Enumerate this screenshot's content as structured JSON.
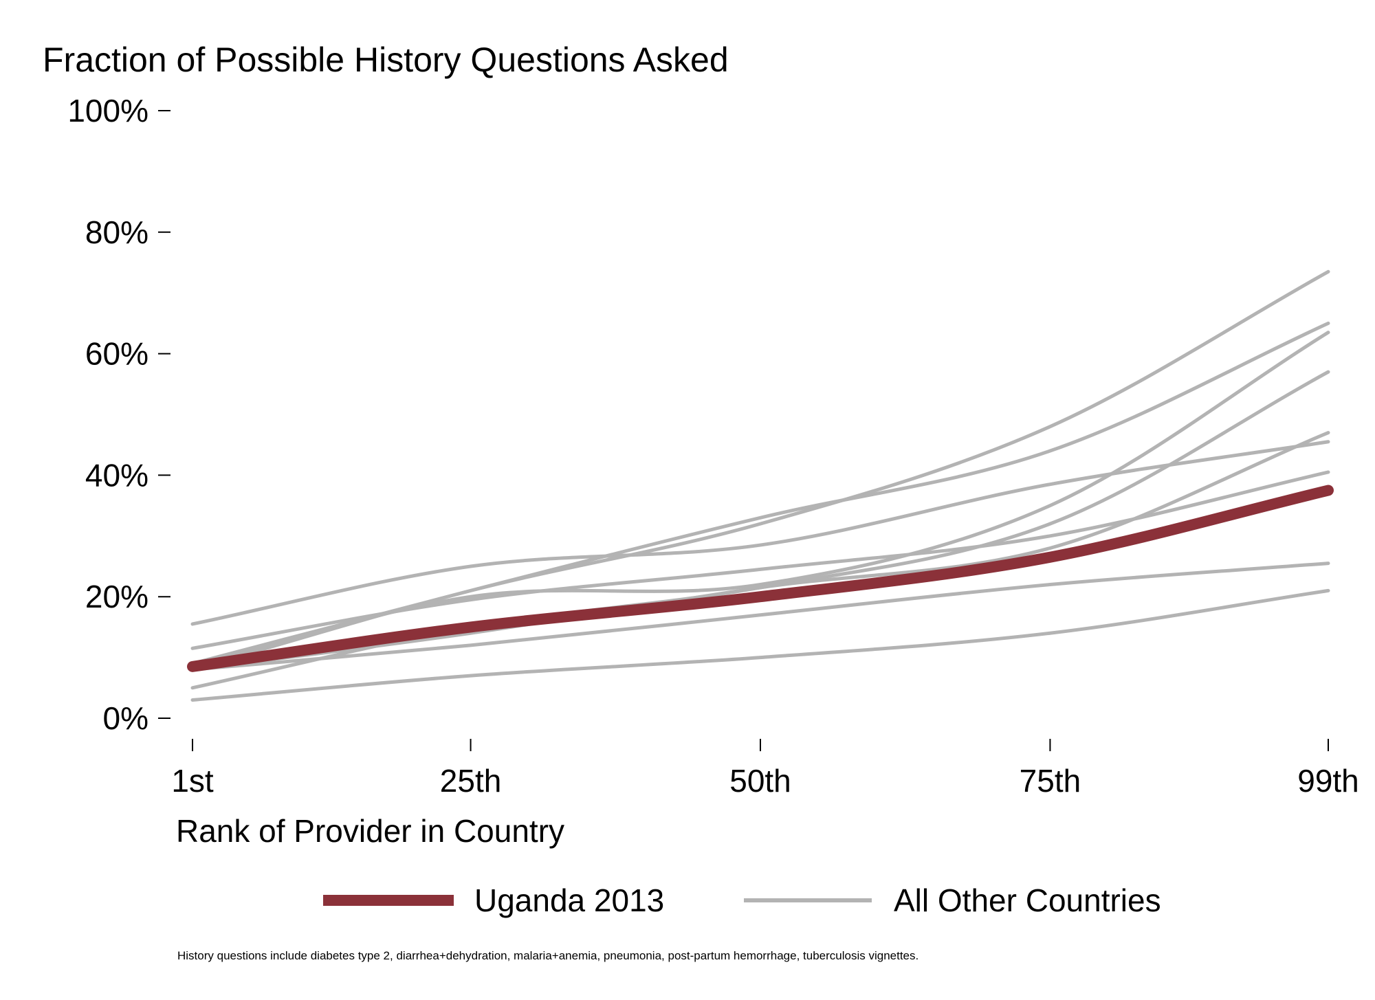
{
  "chart_data": {
    "type": "line",
    "title": "Fraction of Possible History Questions Asked",
    "xlabel": "Rank of Provider in Country",
    "ylabel": "",
    "x_ticks": [
      {
        "value": 1,
        "label": "1st"
      },
      {
        "value": 25,
        "label": "25th"
      },
      {
        "value": 50,
        "label": "50th"
      },
      {
        "value": 75,
        "label": "75th"
      },
      {
        "value": 99,
        "label": "99th"
      }
    ],
    "y_ticks": [
      {
        "value": 0,
        "label": "0%"
      },
      {
        "value": 20,
        "label": "20%"
      },
      {
        "value": 40,
        "label": "40%"
      },
      {
        "value": 60,
        "label": "60%"
      },
      {
        "value": 80,
        "label": "80%"
      },
      {
        "value": 100,
        "label": "100%"
      }
    ],
    "xlim": [
      1,
      99
    ],
    "ylim": [
      0,
      100
    ],
    "x": [
      1,
      25,
      50,
      75,
      99
    ],
    "highlight_series": {
      "name": "Uganda 2013",
      "color": "#8b3139",
      "values": [
        8.5,
        15,
        20,
        26.5,
        37.5
      ]
    },
    "other_series_legend": "All Other Countries",
    "other_series_color": "#b3b3b3",
    "other_series": [
      {
        "values": [
          15.5,
          25,
          28.5,
          38.5,
          45.5
        ]
      },
      {
        "values": [
          11.5,
          19.5,
          24.5,
          30,
          40.5
        ]
      },
      {
        "values": [
          8,
          21,
          32,
          48,
          73.5
        ]
      },
      {
        "values": [
          9,
          21,
          33,
          44,
          65
        ]
      },
      {
        "values": [
          8.5,
          20,
          22,
          35,
          63.5
        ]
      },
      {
        "values": [
          5,
          15,
          21.5,
          32,
          57
        ]
      },
      {
        "values": [
          8,
          12,
          17,
          22,
          25.5
        ]
      },
      {
        "values": [
          3,
          7,
          10,
          14,
          21
        ]
      },
      {
        "values": [
          8,
          14,
          21.5,
          28,
          47
        ]
      }
    ],
    "grid": false,
    "legend_position": "bottom"
  },
  "note": "History questions include diabetes type 2, diarrhea+dehydration, malaria+anemia, pneumonia, post-partum hemorrhage, tuberculosis vignettes."
}
